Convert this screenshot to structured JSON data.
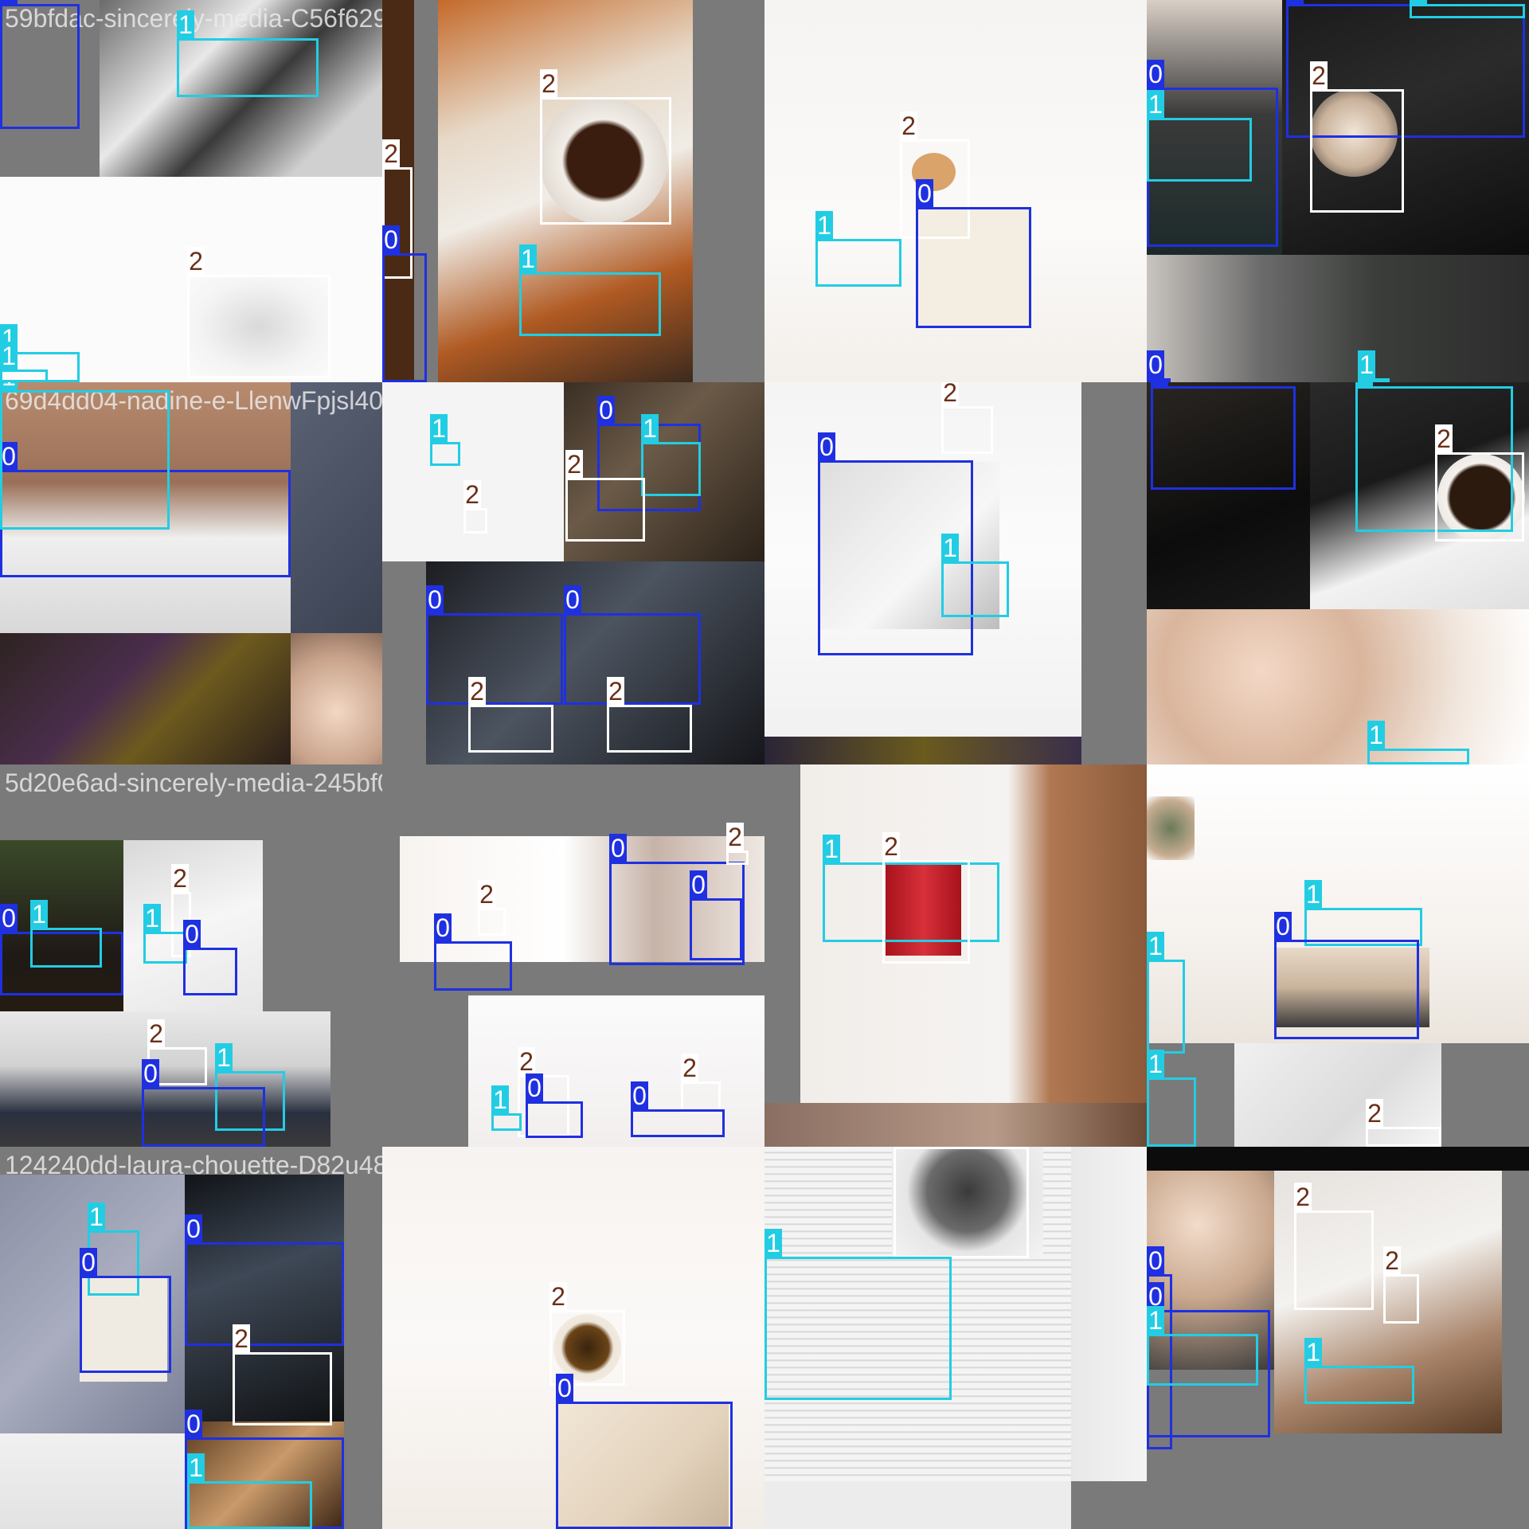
{
  "colors": {
    "class_0": "#1f30e0",
    "class_1": "#22cde3",
    "class_2": "#ffffff",
    "class_2_text": "#6b2f17",
    "padding": "#7a7a7a"
  },
  "tiles": [
    {
      "filename": "59bfdac-sincerely-media-C56f6290-gv-uesely-media-2-8a7K7eIWDgMaalszahed-Kr3ibV273930wn-unsplash-Cb9",
      "boxes": [
        {
          "cls": "0"
        },
        {
          "cls": "1"
        },
        {
          "cls": "2"
        },
        {
          "cls": "1"
        },
        {
          "cls": "1"
        }
      ]
    },
    {
      "filename": "",
      "boxes": [
        {
          "cls": "2"
        },
        {
          "cls": "2"
        },
        {
          "cls": "0"
        },
        {
          "cls": "1"
        }
      ]
    },
    {
      "filename": "",
      "boxes": [
        {
          "cls": "2"
        },
        {
          "cls": "0"
        },
        {
          "cls": "1"
        }
      ]
    },
    {
      "filename": "",
      "boxes": [
        {
          "cls": "0"
        },
        {
          "cls": "1"
        },
        {
          "cls": "2"
        },
        {
          "cls": "0"
        },
        {
          "cls": "1"
        },
        {
          "cls": "0"
        },
        {
          "cls": "1"
        }
      ]
    },
    {
      "filename": "69d4dd04-nadine-e-LlenwFpjsl4075476-laken-yn-wood-sJo4Ra9d0-sincerely-media-x3d36fsjaJ-mawsa-ammar-1X",
      "boxes": [
        {
          "cls": "0"
        },
        {
          "cls": "1"
        }
      ]
    },
    {
      "filename": "",
      "boxes": [
        {
          "cls": "1"
        },
        {
          "cls": "2"
        },
        {
          "cls": "0"
        },
        {
          "cls": "1"
        },
        {
          "cls": "2"
        },
        {
          "cls": "0"
        },
        {
          "cls": "0"
        },
        {
          "cls": "2"
        },
        {
          "cls": "2"
        }
      ]
    },
    {
      "filename": "",
      "boxes": [
        {
          "cls": "2"
        },
        {
          "cls": "0"
        },
        {
          "cls": "1"
        }
      ]
    },
    {
      "filename": "",
      "boxes": [
        {
          "cls": "2"
        },
        {
          "cls": "1"
        },
        {
          "cls": "2"
        },
        {
          "cls": "1"
        }
      ]
    },
    {
      "filename": "5d20e6ad-sincerely-media-245bf04f83y-g39-plms-h5hTnGx881Su7bs82-hah-jshea-apcUlq5PEd62aspenskolde-6c8qrsC",
      "boxes": [
        {
          "cls": "0"
        },
        {
          "cls": "1"
        },
        {
          "cls": "2"
        },
        {
          "cls": "1"
        },
        {
          "cls": "0"
        },
        {
          "cls": "2"
        },
        {
          "cls": "1"
        },
        {
          "cls": "0"
        }
      ]
    },
    {
      "filename": "",
      "boxes": [
        {
          "cls": "2"
        },
        {
          "cls": "0"
        },
        {
          "cls": "0"
        },
        {
          "cls": "2"
        },
        {
          "cls": "0"
        },
        {
          "cls": "2"
        },
        {
          "cls": "1"
        },
        {
          "cls": "0"
        },
        {
          "cls": "2"
        },
        {
          "cls": "0"
        }
      ]
    },
    {
      "filename": "",
      "boxes": [
        {
          "cls": "1"
        },
        {
          "cls": "2"
        }
      ]
    },
    {
      "filename": "",
      "boxes": [
        {
          "cls": "1"
        },
        {
          "cls": "0"
        },
        {
          "cls": "1"
        },
        {
          "cls": "1"
        },
        {
          "cls": "2"
        }
      ]
    },
    {
      "filename": "124240dd-laura-chouette-D82u4810680-abhishek-vesakaran-467RbRO-fmaWh9ZC4727c4d0ns-sincerely-media-x",
      "boxes": [
        {
          "cls": "1"
        },
        {
          "cls": "0"
        },
        {
          "cls": "0"
        },
        {
          "cls": "2"
        },
        {
          "cls": "0"
        },
        {
          "cls": "1"
        }
      ]
    },
    {
      "filename": "",
      "boxes": [
        {
          "cls": "2"
        },
        {
          "cls": "0"
        }
      ]
    },
    {
      "filename": "",
      "boxes": [
        {
          "cls": "2"
        },
        {
          "cls": "1"
        }
      ]
    },
    {
      "filename": "",
      "boxes": [
        {
          "cls": "0"
        },
        {
          "cls": "0"
        },
        {
          "cls": "2"
        },
        {
          "cls": "2"
        },
        {
          "cls": "1"
        },
        {
          "cls": "1"
        }
      ]
    }
  ]
}
